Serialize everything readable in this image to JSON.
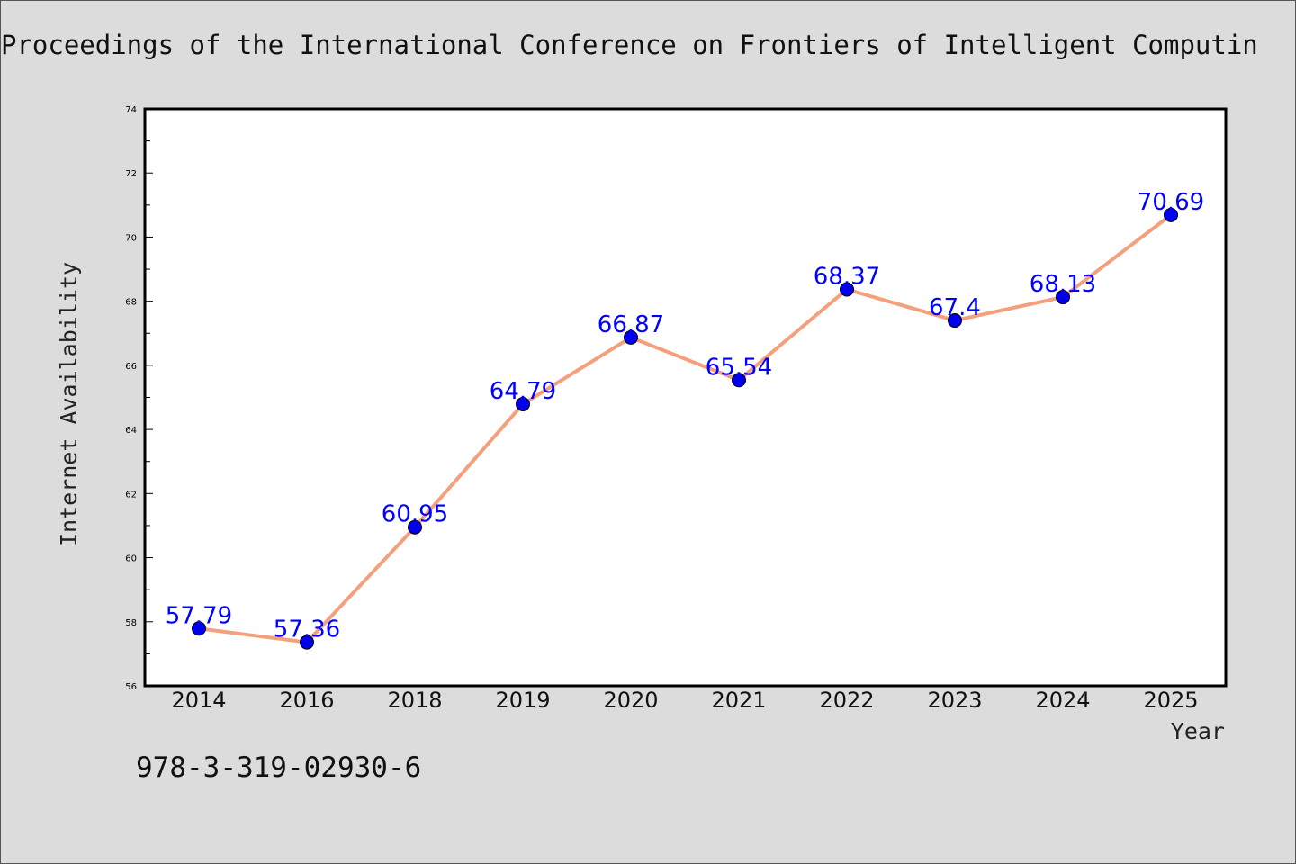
{
  "header": {
    "title": "Proceedings of the International Conference on Frontiers of Intelligent Computin"
  },
  "footer": {
    "isbn": "978-3-319-02930-6"
  },
  "chart_data": {
    "type": "line",
    "title": "Proceedings of the International Conference on Frontiers of Intelligent Computin",
    "xlabel": "Year",
    "ylabel": "Internet Availability",
    "categories": [
      "2014",
      "2016",
      "2018",
      "2019",
      "2020",
      "2021",
      "2022",
      "2023",
      "2024",
      "2025"
    ],
    "series": [
      {
        "values": [
          57.79,
          57.36,
          60.95,
          64.79,
          66.87,
          65.54,
          68.37,
          67.4,
          68.13,
          70.69
        ],
        "labels": [
          "57.79",
          "57.36",
          "60.95",
          "64.79",
          "66.87",
          "65.54",
          "68.37",
          "67.4",
          "68.13",
          "70.69"
        ]
      }
    ],
    "ylim": [
      56,
      74
    ],
    "yticks": [
      "56",
      "58",
      "60",
      "62",
      "64",
      "66",
      "68",
      "70",
      "72",
      "74"
    ],
    "grid": false,
    "colors": {
      "line": "#f4a07c",
      "marker": "#0000ee",
      "label": "#0000ff",
      "plot_bg": "#ffffff",
      "page_bg": "#dcdcdc"
    }
  }
}
